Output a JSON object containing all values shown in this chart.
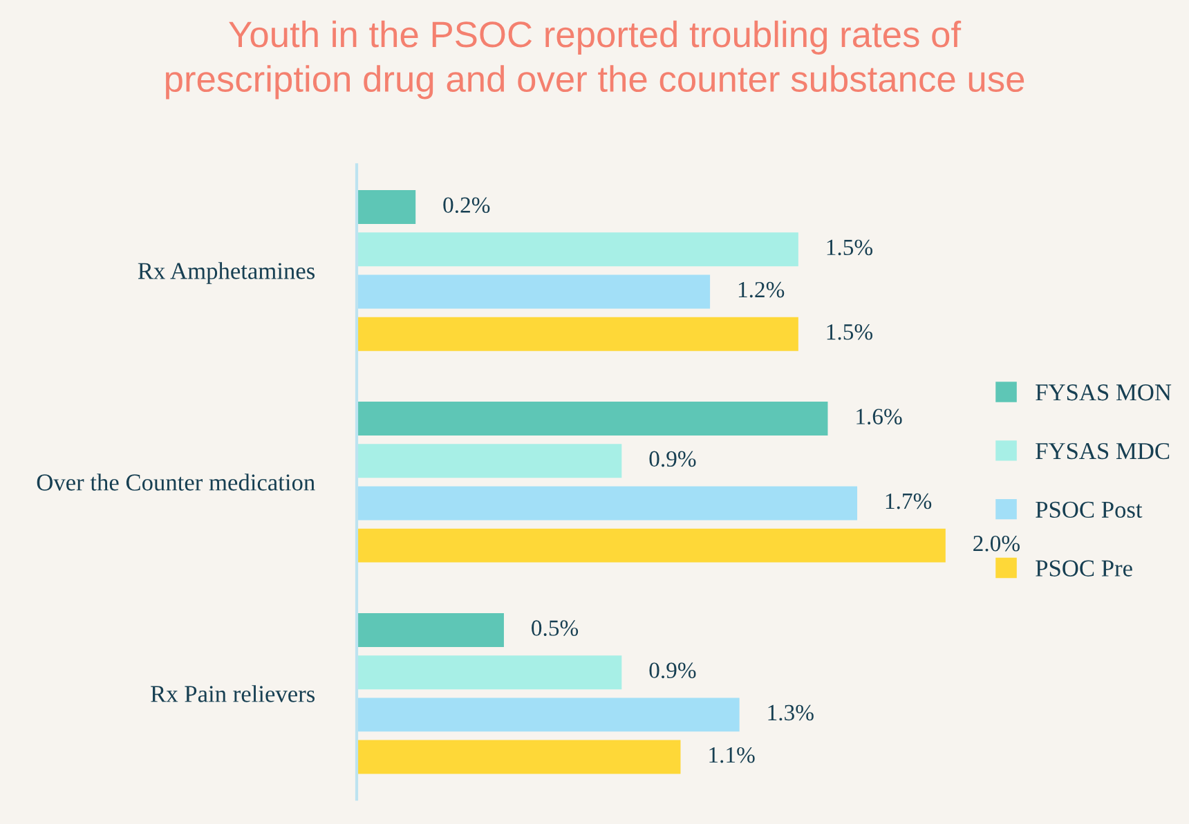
{
  "chart_data": {
    "type": "bar",
    "orientation": "horizontal",
    "title": "Youth in the PSOC reported troubling rates of\nprescription drug and over the counter substance use",
    "categories": [
      "Rx Amphetamines",
      "Over the Counter medication",
      "Rx Pain relievers"
    ],
    "series": [
      {
        "name": "FYSAS MON",
        "color": "#5ec6b6",
        "values": [
          0.2,
          1.6,
          0.5
        ],
        "value_labels": [
          "0.2%",
          "1.6%",
          "0.5%"
        ]
      },
      {
        "name": "FYSAS MDC",
        "color": "#a7efe6",
        "values": [
          1.5,
          0.9,
          0.9
        ],
        "value_labels": [
          "1.5%",
          "0.9%",
          "0.9%"
        ]
      },
      {
        "name": "PSOC Post",
        "color": "#a2dff7",
        "values": [
          1.2,
          1.7,
          1.3
        ],
        "value_labels": [
          "1.2%",
          "1.7%",
          "1.3%"
        ]
      },
      {
        "name": "PSOC Pre",
        "color": "#fed838",
        "values": [
          1.5,
          2.0,
          1.1
        ],
        "value_labels": [
          "1.5%",
          "2.0%",
          "1.1%"
        ]
      }
    ],
    "legend": "right",
    "tick_labels": "y",
    "grid": false
  }
}
